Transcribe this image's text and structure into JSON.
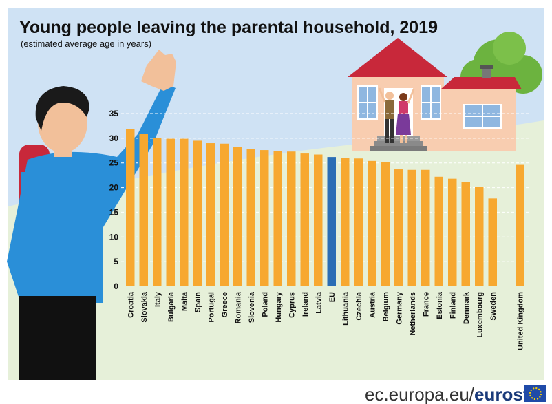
{
  "chart_data": {
    "type": "bar",
    "title": "Young people leaving the parental household, 2019",
    "subtitle": "(estimated average age in years)",
    "xlabel": "",
    "ylabel": "",
    "ylim": [
      0,
      35
    ],
    "yticks": [
      0,
      5,
      10,
      15,
      20,
      25,
      30,
      35
    ],
    "grid": true,
    "categories": [
      "Croatia",
      "Slovakia",
      "Italy",
      "Bulgaria",
      "Malta",
      "Spain",
      "Portugal",
      "Greece",
      "Romania",
      "Slovenia",
      "Poland",
      "Hungary",
      "Cyprus",
      "Ireland",
      "Latvia",
      "EU",
      "Lithuania",
      "Czechia",
      "Austria",
      "Belgium",
      "Germany",
      "Netherlands",
      "France",
      "Estonia",
      "Finland",
      "Denmark",
      "Luxembourg",
      "Sweden",
      "United Kingdom"
    ],
    "values": [
      31.8,
      30.9,
      30.1,
      29.9,
      29.9,
      29.5,
      29.0,
      28.9,
      28.3,
      27.8,
      27.6,
      27.4,
      27.3,
      26.9,
      26.7,
      26.2,
      26.0,
      25.9,
      25.4,
      25.2,
      23.7,
      23.6,
      23.6,
      22.2,
      21.8,
      21.1,
      20.1,
      17.8,
      24.6
    ],
    "highlight": "EU",
    "colors": {
      "bar": "#f7a830",
      "highlight": "#2a6db5"
    }
  },
  "footer": {
    "domain": "ec.europa.eu/",
    "brand": "eurostat"
  }
}
